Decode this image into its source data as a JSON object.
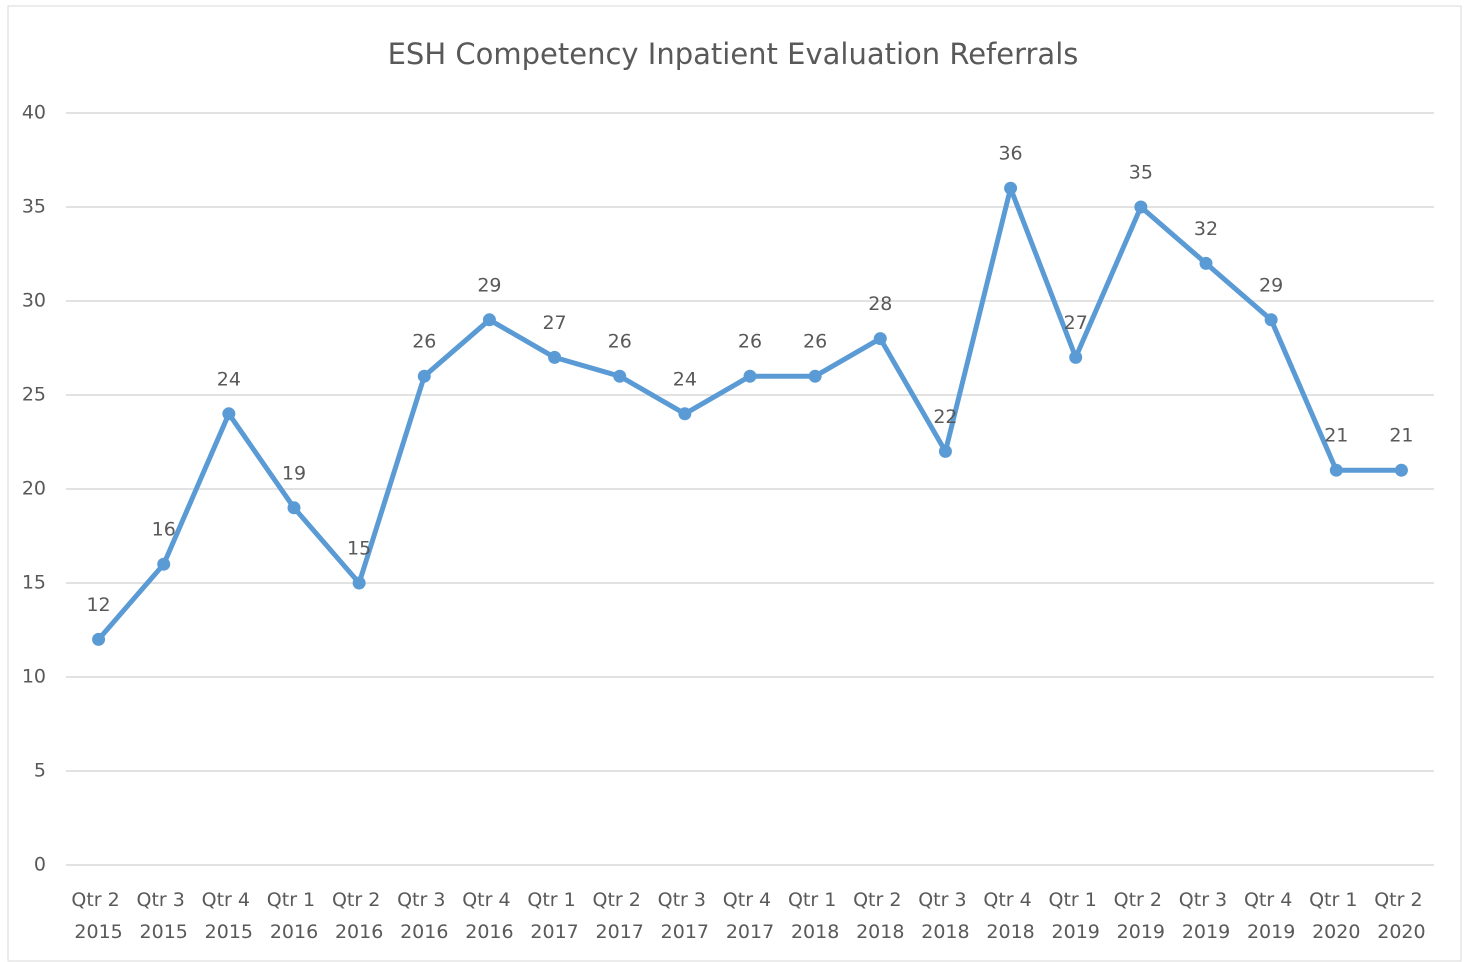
{
  "chart_data": {
    "type": "line",
    "title": "ESH Competency Inpatient Evaluation Referrals",
    "categories": [
      "Qtr 2 2015",
      "Qtr 3 2015",
      "Qtr 4 2015",
      "Qtr 1 2016",
      "Qtr 2 2016",
      "Qtr 3 2016",
      "Qtr 4 2016",
      "Qtr 1 2017",
      "Qtr 2 2017",
      "Qtr 3 2017",
      "Qtr 4 2017",
      "Qtr 1 2018",
      "Qtr 2 2018",
      "Qtr 3 2018",
      "Qtr 4 2018",
      "Qtr 1 2019",
      "Qtr 2 2019",
      "Qtr 3 2019",
      "Qtr 4 2019",
      "Qtr 1 2020",
      "Qtr 2 2020"
    ],
    "values": [
      12,
      16,
      24,
      19,
      15,
      26,
      29,
      27,
      26,
      24,
      26,
      26,
      28,
      22,
      36,
      27,
      35,
      32,
      29,
      21,
      21
    ],
    "color": "#5b9bd5",
    "ylim": [
      0,
      40
    ],
    "yticks": [
      0,
      5,
      10,
      15,
      20,
      25,
      30,
      35,
      40
    ],
    "grid": true
  }
}
